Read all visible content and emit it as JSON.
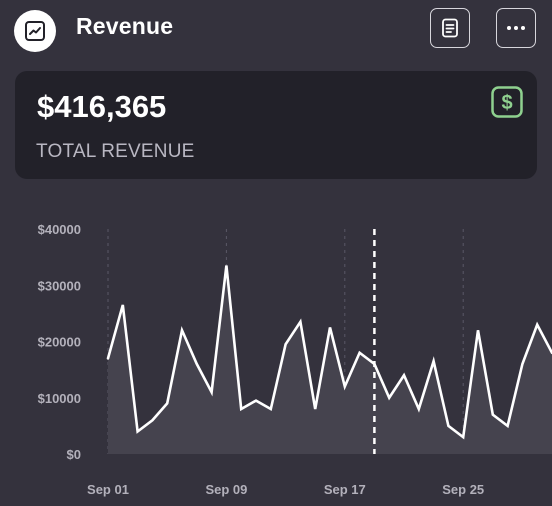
{
  "header": {
    "title": "Revenue",
    "logo_icon": "line-chart-icon",
    "report_button_icon": "document-icon",
    "more_button_icon": "more-horizontal-icon"
  },
  "summary": {
    "amount": "$416,365",
    "label": "TOTAL REVENUE",
    "icon": "dollar-icon",
    "icon_color": "#8fd18f"
  },
  "colors": {
    "background": "#34323d",
    "card": "#222129",
    "line": "#ffffff",
    "area": "#45434e"
  },
  "chart_data": {
    "type": "area",
    "title": "",
    "xlabel": "",
    "ylabel": "",
    "ylim": [
      0,
      40000
    ],
    "y_ticks": [
      "$0",
      "$10000",
      "$20000",
      "$30000",
      "$40000"
    ],
    "y_tick_values": [
      0,
      10000,
      20000,
      30000,
      40000
    ],
    "x_ticks": [
      "Sep 01",
      "Sep 09",
      "Sep 17",
      "Sep 25"
    ],
    "x_tick_days": [
      1,
      9,
      17,
      25
    ],
    "x": [
      "Sep 01",
      "Sep 02",
      "Sep 03",
      "Sep 04",
      "Sep 05",
      "Sep 06",
      "Sep 07",
      "Sep 08",
      "Sep 09",
      "Sep 10",
      "Sep 11",
      "Sep 12",
      "Sep 13",
      "Sep 14",
      "Sep 15",
      "Sep 16",
      "Sep 17",
      "Sep 18",
      "Sep 19",
      "Sep 20",
      "Sep 21",
      "Sep 22",
      "Sep 23",
      "Sep 24",
      "Sep 25",
      "Sep 26",
      "Sep 27",
      "Sep 28",
      "Sep 29",
      "Sep 30",
      "Oct 01"
    ],
    "values": [
      17000,
      26500,
      4000,
      6000,
      9000,
      22000,
      16000,
      11000,
      33500,
      8000,
      9500,
      8000,
      19500,
      23500,
      8000,
      22500,
      12000,
      18000,
      16000,
      10000,
      14000,
      8000,
      16500,
      5000,
      3000,
      22000,
      7000,
      5000,
      16000,
      23000,
      18000
    ],
    "marker": "Sep 19",
    "grid": "vertical dashed at x ticks"
  }
}
